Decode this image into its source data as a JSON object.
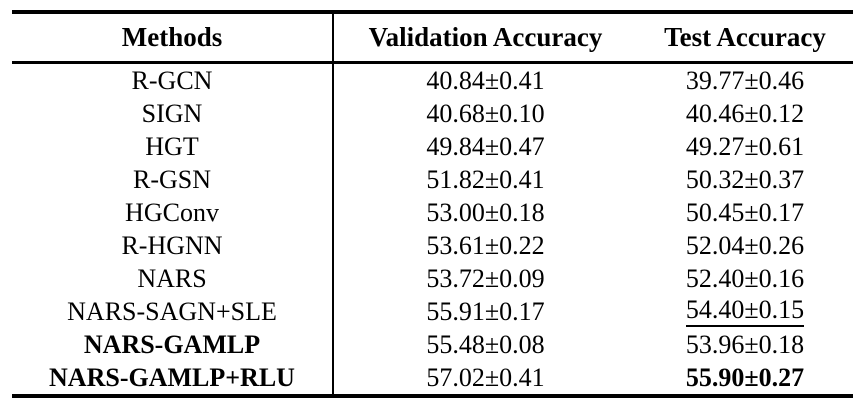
{
  "table": {
    "columns": {
      "methods": "Methods",
      "validation": "Validation Accuracy",
      "test": "Test Accuracy"
    },
    "rows": [
      {
        "method": "R-GCN",
        "validation": "40.84±0.41",
        "test": "39.77±0.46",
        "method_bold": false,
        "test_bold": false,
        "test_underline": false
      },
      {
        "method": "SIGN",
        "validation": "40.68±0.10",
        "test": "40.46±0.12",
        "method_bold": false,
        "test_bold": false,
        "test_underline": false
      },
      {
        "method": "HGT",
        "validation": "49.84±0.47",
        "test": "49.27±0.61",
        "method_bold": false,
        "test_bold": false,
        "test_underline": false
      },
      {
        "method": "R-GSN",
        "validation": "51.82±0.41",
        "test": "50.32±0.37",
        "method_bold": false,
        "test_bold": false,
        "test_underline": false
      },
      {
        "method": "HGConv",
        "validation": "53.00±0.18",
        "test": "50.45±0.17",
        "method_bold": false,
        "test_bold": false,
        "test_underline": false
      },
      {
        "method": "R-HGNN",
        "validation": "53.61±0.22",
        "test": "52.04±0.26",
        "method_bold": false,
        "test_bold": false,
        "test_underline": false
      },
      {
        "method": "NARS",
        "validation": "53.72±0.09",
        "test": "52.40±0.16",
        "method_bold": false,
        "test_bold": false,
        "test_underline": false
      },
      {
        "method": "NARS-SAGN+SLE",
        "validation": "55.91±0.17",
        "test": "54.40±0.15",
        "method_bold": false,
        "test_bold": false,
        "test_underline": true
      },
      {
        "method": "NARS-GAMLP",
        "validation": "55.48±0.08",
        "test": "53.96±0.18",
        "method_bold": true,
        "test_bold": false,
        "test_underline": false
      },
      {
        "method": "NARS-GAMLP+RLU",
        "validation": "57.02±0.41",
        "test": "55.90±0.27",
        "method_bold": true,
        "test_bold": true,
        "test_underline": false
      }
    ]
  }
}
